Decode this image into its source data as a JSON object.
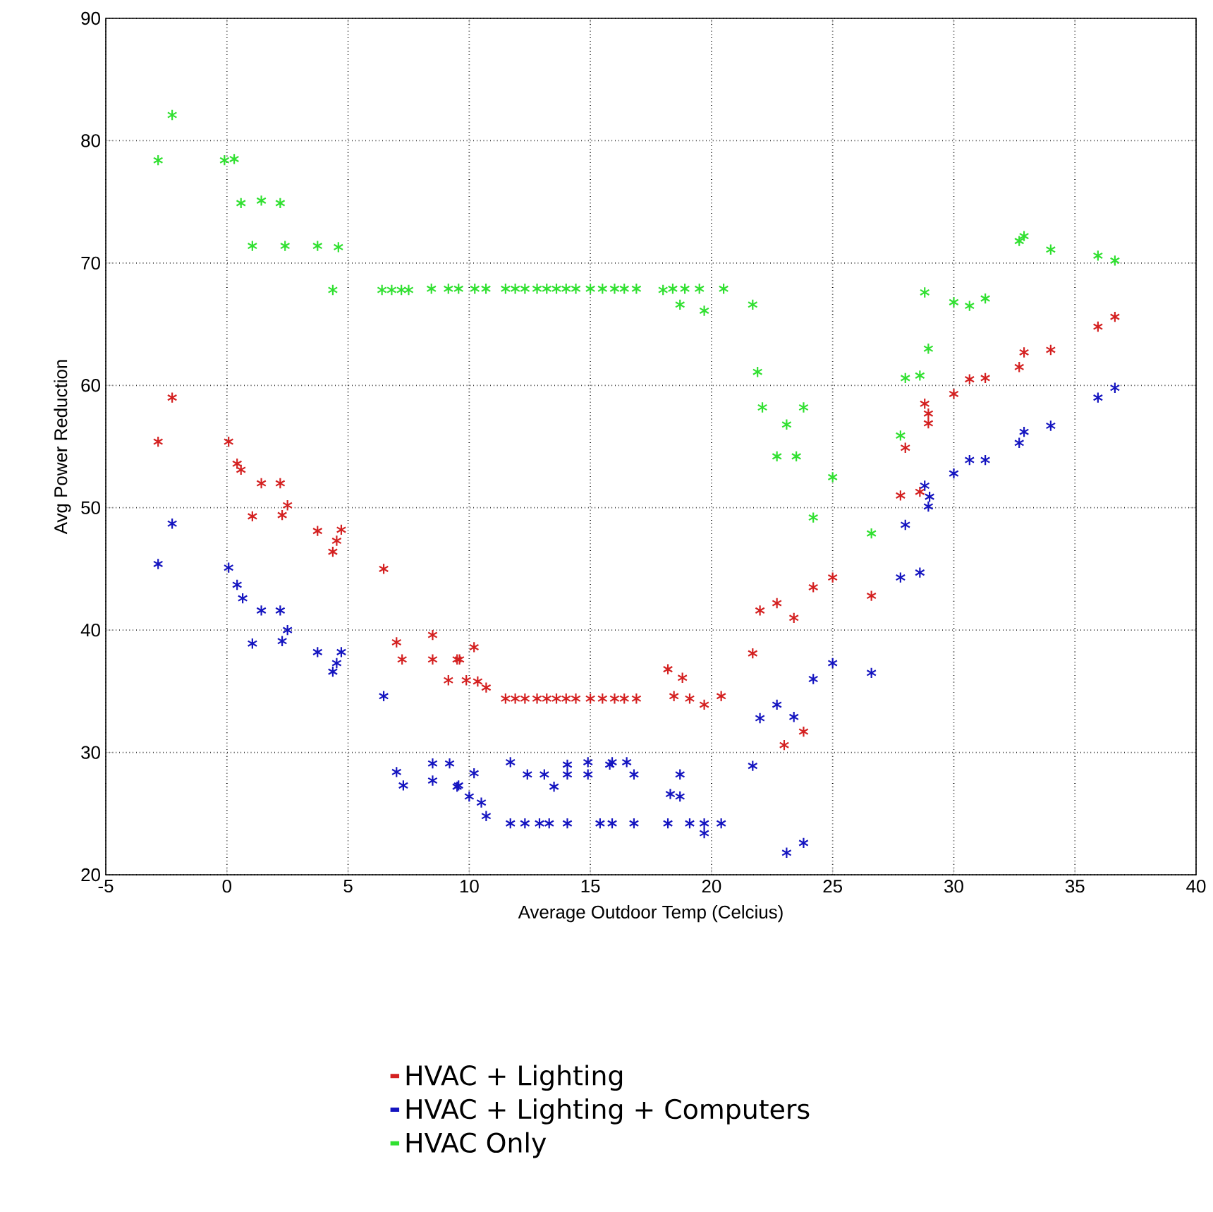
{
  "chart_data": {
    "type": "scatter",
    "xlabel": "Average Outdoor Temp (Celcius)",
    "ylabel": "Avg Power Reduction",
    "xlim": [
      -5,
      40
    ],
    "ylim": [
      20,
      90
    ],
    "xticks": [
      -5,
      0,
      5,
      10,
      15,
      20,
      25,
      30,
      35,
      40
    ],
    "yticks": [
      20,
      30,
      40,
      50,
      60,
      70,
      80,
      90
    ],
    "grid": true,
    "legend": "bottom",
    "marker": "cross",
    "series": [
      {
        "name": "HVAC + Lighting",
        "color": "#d42020",
        "x": [
          -2.26,
          -2.84,
          0.07,
          0.42,
          0.58,
          1.42,
          2.2,
          1.05,
          2.28,
          2.5,
          3.74,
          4.37,
          4.53,
          4.72,
          6.47,
          7.0,
          7.23,
          8.49,
          8.49,
          9.14,
          9.6,
          10.2,
          9.5,
          9.88,
          10.35,
          10.7,
          11.5,
          11.9,
          12.3,
          12.8,
          13.2,
          13.6,
          14.0,
          14.4,
          15.0,
          15.5,
          16.0,
          16.4,
          16.9,
          18.2,
          18.8,
          18.45,
          19.1,
          19.7,
          20.4,
          21.7,
          22.0,
          22.7,
          23.4,
          23.0,
          23.8,
          24.2,
          25.0,
          26.6,
          27.8,
          28.0,
          28.6,
          28.8,
          28.95,
          28.95,
          30.0,
          30.65,
          31.3,
          32.7,
          32.9,
          34.0,
          35.95,
          36.65
        ],
        "values": [
          59.0,
          55.4,
          55.4,
          53.6,
          53.1,
          52.0,
          52.0,
          49.3,
          49.4,
          50.2,
          48.1,
          46.4,
          47.3,
          48.2,
          45.0,
          39.0,
          37.6,
          39.6,
          37.6,
          35.9,
          37.6,
          38.6,
          37.6,
          35.9,
          35.8,
          35.3,
          34.4,
          34.4,
          34.4,
          34.4,
          34.4,
          34.4,
          34.4,
          34.4,
          34.4,
          34.4,
          34.4,
          34.4,
          34.4,
          36.8,
          36.1,
          34.6,
          34.4,
          33.9,
          34.6,
          38.1,
          41.6,
          42.2,
          41.0,
          30.6,
          31.7,
          43.5,
          44.3,
          42.8,
          51.0,
          54.9,
          51.3,
          58.5,
          57.7,
          56.9,
          59.3,
          60.5,
          60.6,
          61.5,
          62.7,
          62.9,
          64.8,
          65.6
        ]
      },
      {
        "name": "HVAC + Lighting + Computers",
        "color": "#1414c0",
        "x": [
          -2.26,
          -2.84,
          0.07,
          0.42,
          0.65,
          1.42,
          2.2,
          1.05,
          2.28,
          2.5,
          3.74,
          4.37,
          4.53,
          4.72,
          6.47,
          7.0,
          7.28,
          8.49,
          9.19,
          8.49,
          9.56,
          10.2,
          9.5,
          10.0,
          10.5,
          10.7,
          11.7,
          12.4,
          13.1,
          13.5,
          14.05,
          14.05,
          14.9,
          14.9,
          15.8,
          15.9,
          16.5,
          16.8,
          18.7,
          18.3,
          18.7,
          11.7,
          12.3,
          12.9,
          13.3,
          14.05,
          15.4,
          15.9,
          16.8,
          18.2,
          19.1,
          19.7,
          20.4,
          19.7,
          21.7,
          22.0,
          22.7,
          23.4,
          23.1,
          23.8,
          24.2,
          25.0,
          26.6,
          27.8,
          28.0,
          28.6,
          28.8,
          29.0,
          28.95,
          30.0,
          30.65,
          31.3,
          32.7,
          32.9,
          34.0,
          35.95,
          36.65
        ],
        "values": [
          48.7,
          45.4,
          45.1,
          43.7,
          42.6,
          41.6,
          41.6,
          38.9,
          39.1,
          40.0,
          38.2,
          36.6,
          37.3,
          38.2,
          34.6,
          28.4,
          27.3,
          29.1,
          29.1,
          27.7,
          27.3,
          28.3,
          27.2,
          26.4,
          25.9,
          24.8,
          29.2,
          28.2,
          28.2,
          27.2,
          28.2,
          29.0,
          29.2,
          28.2,
          29.0,
          29.2,
          29.2,
          28.2,
          28.2,
          26.6,
          26.4,
          24.2,
          24.2,
          24.2,
          24.2,
          24.2,
          24.2,
          24.2,
          24.2,
          24.2,
          24.2,
          24.2,
          24.2,
          23.4,
          28.9,
          32.8,
          33.9,
          32.9,
          21.8,
          22.6,
          36.0,
          37.3,
          36.5,
          44.3,
          48.6,
          44.7,
          51.8,
          50.9,
          50.1,
          52.8,
          53.9,
          53.9,
          55.3,
          56.2,
          56.7,
          59.0,
          59.8
        ]
      },
      {
        "name": "HVAC Only",
        "color": "#30e030",
        "x": [
          -2.84,
          -2.26,
          -0.1,
          0.3,
          0.58,
          1.42,
          2.2,
          1.05,
          2.4,
          3.74,
          4.6,
          4.37,
          6.4,
          6.8,
          7.2,
          7.5,
          8.44,
          9.14,
          9.56,
          10.23,
          10.69,
          11.5,
          11.9,
          12.3,
          12.8,
          13.2,
          13.6,
          14.0,
          14.4,
          15.0,
          15.5,
          16.0,
          16.4,
          16.9,
          18.0,
          18.4,
          18.9,
          19.5,
          20.5,
          18.7,
          19.7,
          21.7,
          21.9,
          22.1,
          23.8,
          23.1,
          22.7,
          23.5,
          24.2,
          25.0,
          26.6,
          27.8,
          28.0,
          28.6,
          28.95,
          28.8,
          30.0,
          30.65,
          31.3,
          32.7,
          32.9,
          34.0,
          35.95,
          36.65
        ],
        "values": [
          78.4,
          82.1,
          78.4,
          78.5,
          74.9,
          75.1,
          74.9,
          71.4,
          71.4,
          71.4,
          71.3,
          67.8,
          67.8,
          67.8,
          67.8,
          67.8,
          67.9,
          67.9,
          67.9,
          67.9,
          67.9,
          67.9,
          67.9,
          67.9,
          67.9,
          67.9,
          67.9,
          67.9,
          67.9,
          67.9,
          67.9,
          67.9,
          67.9,
          67.9,
          67.8,
          67.9,
          67.9,
          67.9,
          67.9,
          66.6,
          66.1,
          66.6,
          61.1,
          58.2,
          58.2,
          56.8,
          54.2,
          54.2,
          49.2,
          52.5,
          47.9,
          55.9,
          60.6,
          60.8,
          63.0,
          67.6,
          66.8,
          66.5,
          67.1,
          71.8,
          72.2,
          71.1,
          70.6,
          70.2
        ]
      }
    ]
  }
}
